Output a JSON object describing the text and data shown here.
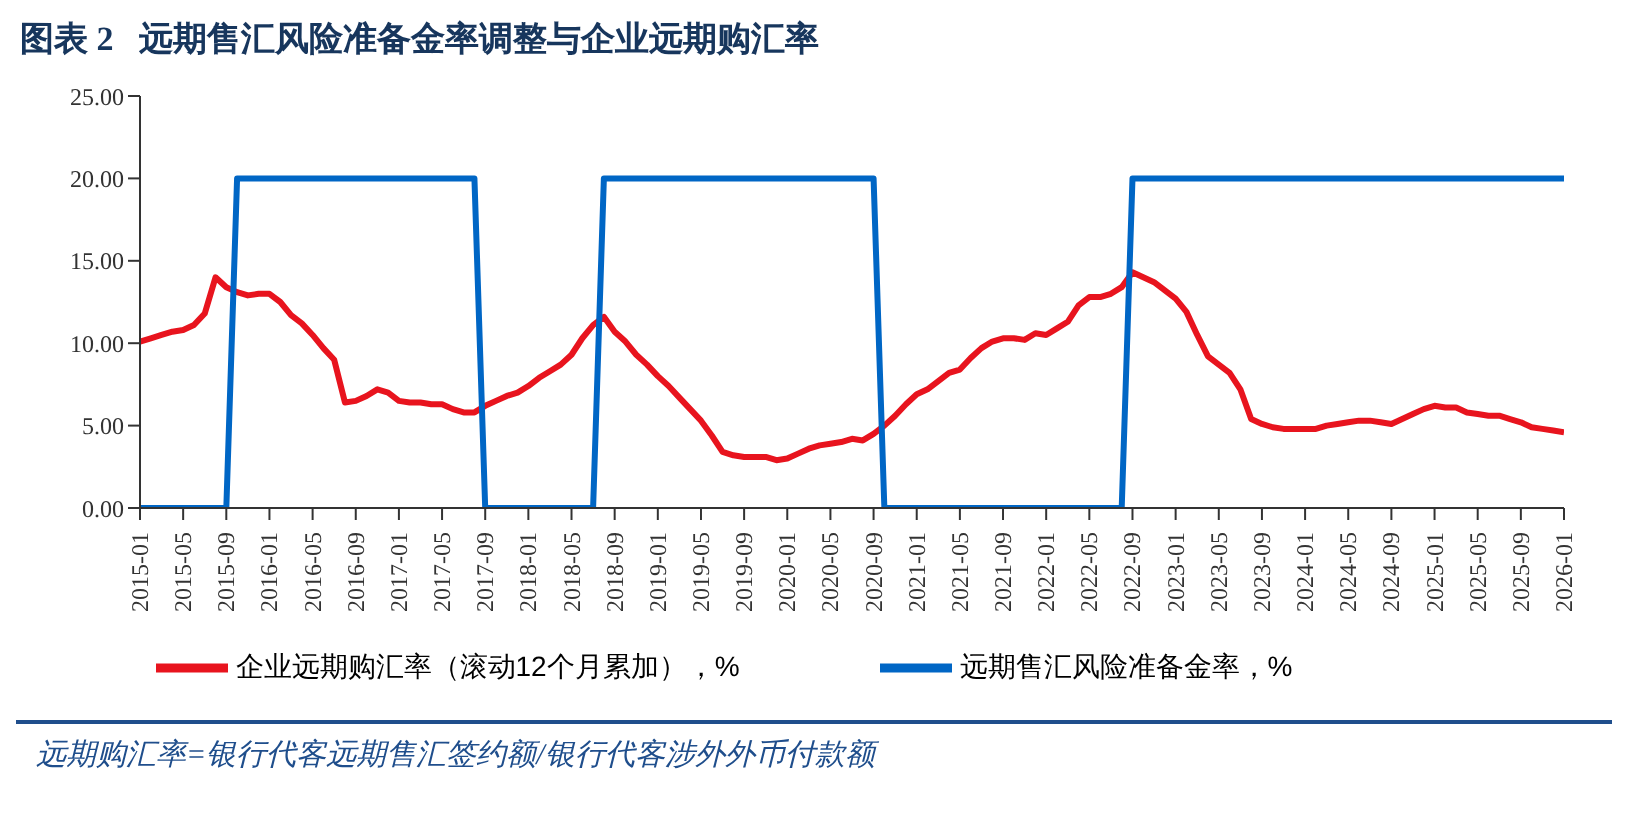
{
  "chart_data": {
    "type": "line",
    "title": "图表 2   远期售汇风险准备金率调整与企业远期购汇率",
    "categories": [
      "2015-01",
      null,
      null,
      null,
      "2015-05",
      null,
      null,
      null,
      "2015-09",
      null,
      null,
      null,
      "2016-01",
      null,
      null,
      null,
      "2016-05",
      null,
      null,
      null,
      "2016-09",
      null,
      null,
      null,
      "2017-01",
      null,
      null,
      null,
      "2017-05",
      null,
      null,
      null,
      "2017-09",
      null,
      null,
      null,
      "2018-01",
      null,
      null,
      null,
      "2018-05",
      null,
      null,
      null,
      "2018-09",
      null,
      null,
      null,
      "2019-01",
      null,
      null,
      null,
      "2019-05",
      null,
      null,
      null,
      "2019-09",
      null,
      null,
      null,
      "2020-01",
      null,
      null,
      null,
      "2020-05",
      null,
      null,
      null,
      "2020-09",
      null,
      null,
      null,
      "2021-01",
      null,
      null,
      null,
      "2021-05",
      null,
      null,
      null,
      "2021-09",
      null,
      null,
      null,
      "2022-01",
      null,
      null,
      null,
      "2022-05",
      null,
      null,
      null,
      "2022-09",
      null,
      null,
      null,
      "2023-01",
      null,
      null,
      null,
      "2023-05",
      null,
      null,
      null,
      "2023-09",
      null,
      null,
      null,
      "2024-01",
      null,
      null,
      null,
      "2024-05",
      null,
      null,
      null,
      "2024-09",
      null,
      null,
      null,
      "2025-01",
      null,
      null,
      null,
      "2025-05",
      null,
      null,
      null,
      "2025-09",
      null,
      null,
      null,
      "2026-01"
    ],
    "series": [
      {
        "name": "企业远期购汇率（滚动12个月累加），%",
        "color": "#e8141e",
        "values": [
          10.1,
          10.3,
          10.5,
          10.7,
          10.8,
          11.1,
          11.8,
          14.0,
          13.4,
          13.1,
          12.9,
          13.0,
          13.0,
          12.5,
          11.7,
          11.2,
          10.5,
          9.7,
          9.0,
          6.4,
          6.5,
          6.8,
          7.2,
          7.0,
          6.5,
          6.4,
          6.4,
          6.3,
          6.3,
          6.0,
          5.8,
          5.8,
          6.2,
          6.5,
          6.8,
          7.0,
          7.4,
          7.9,
          8.3,
          8.7,
          9.3,
          10.3,
          11.1,
          11.6,
          10.7,
          10.1,
          9.3,
          8.7,
          8.0,
          7.4,
          6.7,
          6.0,
          5.3,
          4.4,
          3.4,
          3.2,
          3.1,
          3.1,
          3.1,
          2.9,
          3.0,
          3.3,
          3.6,
          3.8,
          3.9,
          4.0,
          4.2,
          4.1,
          4.5,
          5.0,
          5.6,
          6.3,
          6.9,
          7.2,
          7.7,
          8.2,
          8.4,
          9.1,
          9.7,
          10.1,
          10.3,
          10.3,
          10.2,
          10.6,
          10.5,
          10.9,
          11.3,
          12.3,
          12.8,
          12.8,
          13.0,
          13.4,
          14.3,
          14.0,
          13.7,
          13.2,
          12.7,
          11.9,
          10.5,
          9.2,
          8.7,
          8.2,
          7.2,
          5.4,
          5.1,
          4.9,
          4.8,
          4.8,
          4.8,
          4.8,
          5.0,
          5.1,
          5.2,
          5.3,
          5.3,
          5.2,
          5.1,
          5.4,
          5.7,
          6.0,
          6.2,
          6.1,
          6.1,
          5.8,
          5.7,
          5.6,
          5.6,
          5.4,
          5.2,
          4.9,
          4.8,
          4.7,
          4.6
        ]
      },
      {
        "name": "远期售汇风险准备金率，%",
        "color": "#0066c5",
        "values": [
          0,
          0,
          0,
          0,
          0,
          0,
          0,
          0,
          0,
          20,
          20,
          20,
          20,
          20,
          20,
          20,
          20,
          20,
          20,
          20,
          20,
          20,
          20,
          20,
          20,
          20,
          20,
          20,
          20,
          20,
          20,
          20,
          0,
          0,
          0,
          0,
          0,
          0,
          0,
          0,
          0,
          0,
          0,
          20,
          20,
          20,
          20,
          20,
          20,
          20,
          20,
          20,
          20,
          20,
          20,
          20,
          20,
          20,
          20,
          20,
          20,
          20,
          20,
          20,
          20,
          20,
          20,
          20,
          20,
          0,
          0,
          0,
          0,
          0,
          0,
          0,
          0,
          0,
          0,
          0,
          0,
          0,
          0,
          0,
          0,
          0,
          0,
          0,
          0,
          0,
          0,
          0,
          20,
          20,
          20,
          20,
          20,
          20,
          20,
          20,
          20,
          20,
          20,
          20,
          20,
          20,
          20,
          20,
          20,
          20,
          20,
          20,
          20,
          20,
          20,
          20,
          20,
          20,
          20,
          20,
          20,
          20,
          20,
          20,
          20,
          20,
          20,
          20,
          20,
          20,
          20,
          20,
          20
        ]
      }
    ],
    "ylim": [
      0,
      25
    ],
    "yticks": [
      {
        "value": 0,
        "label": "0.00"
      },
      {
        "value": 5,
        "label": "5.00"
      },
      {
        "value": 10,
        "label": "10.00"
      },
      {
        "value": 15,
        "label": "15.00"
      },
      {
        "value": 20,
        "label": "20.00"
      },
      {
        "value": 25,
        "label": "25.00"
      }
    ],
    "grid": false,
    "legend": "bottom",
    "marker": "none",
    "line_style": "solid",
    "annotations": [
      "远期购汇率=银行代客远期售汇签约额/银行代客涉外外币付款额"
    ]
  }
}
